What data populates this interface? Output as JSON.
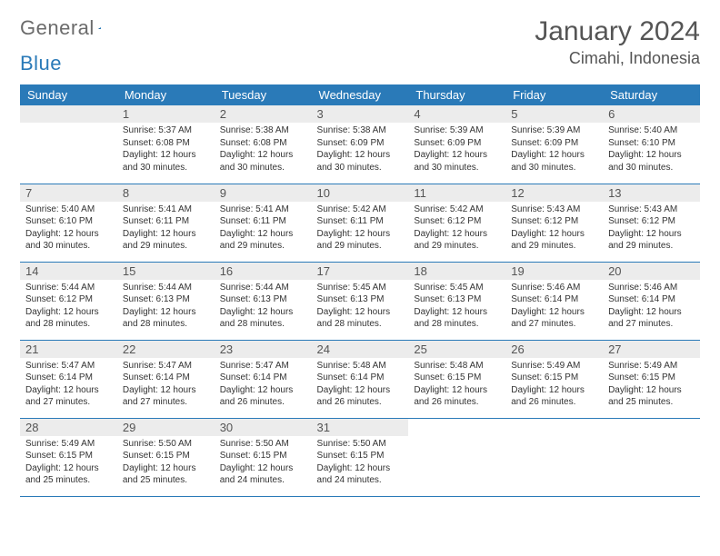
{
  "logo": {
    "text1": "General",
    "text2": "Blue",
    "triangle_color": "#2a7ab8"
  },
  "title": "January 2024",
  "location": "Cimahi, Indonesia",
  "colors": {
    "header_bg": "#2a7ab8",
    "header_fg": "#ffffff",
    "row_border": "#2a7ab8",
    "shade_bg": "#ececec",
    "page_bg": "#ffffff",
    "text": "#333333",
    "title_color": "#555555"
  },
  "weekdays": [
    "Sunday",
    "Monday",
    "Tuesday",
    "Wednesday",
    "Thursday",
    "Friday",
    "Saturday"
  ],
  "start_offset": 1,
  "days": [
    {
      "n": 1,
      "sr": "5:37 AM",
      "ss": "6:08 PM",
      "dl": "12 hours and 30 minutes."
    },
    {
      "n": 2,
      "sr": "5:38 AM",
      "ss": "6:08 PM",
      "dl": "12 hours and 30 minutes."
    },
    {
      "n": 3,
      "sr": "5:38 AM",
      "ss": "6:09 PM",
      "dl": "12 hours and 30 minutes."
    },
    {
      "n": 4,
      "sr": "5:39 AM",
      "ss": "6:09 PM",
      "dl": "12 hours and 30 minutes."
    },
    {
      "n": 5,
      "sr": "5:39 AM",
      "ss": "6:09 PM",
      "dl": "12 hours and 30 minutes."
    },
    {
      "n": 6,
      "sr": "5:40 AM",
      "ss": "6:10 PM",
      "dl": "12 hours and 30 minutes."
    },
    {
      "n": 7,
      "sr": "5:40 AM",
      "ss": "6:10 PM",
      "dl": "12 hours and 30 minutes."
    },
    {
      "n": 8,
      "sr": "5:41 AM",
      "ss": "6:11 PM",
      "dl": "12 hours and 29 minutes."
    },
    {
      "n": 9,
      "sr": "5:41 AM",
      "ss": "6:11 PM",
      "dl": "12 hours and 29 minutes."
    },
    {
      "n": 10,
      "sr": "5:42 AM",
      "ss": "6:11 PM",
      "dl": "12 hours and 29 minutes."
    },
    {
      "n": 11,
      "sr": "5:42 AM",
      "ss": "6:12 PM",
      "dl": "12 hours and 29 minutes."
    },
    {
      "n": 12,
      "sr": "5:43 AM",
      "ss": "6:12 PM",
      "dl": "12 hours and 29 minutes."
    },
    {
      "n": 13,
      "sr": "5:43 AM",
      "ss": "6:12 PM",
      "dl": "12 hours and 29 minutes."
    },
    {
      "n": 14,
      "sr": "5:44 AM",
      "ss": "6:12 PM",
      "dl": "12 hours and 28 minutes."
    },
    {
      "n": 15,
      "sr": "5:44 AM",
      "ss": "6:13 PM",
      "dl": "12 hours and 28 minutes."
    },
    {
      "n": 16,
      "sr": "5:44 AM",
      "ss": "6:13 PM",
      "dl": "12 hours and 28 minutes."
    },
    {
      "n": 17,
      "sr": "5:45 AM",
      "ss": "6:13 PM",
      "dl": "12 hours and 28 minutes."
    },
    {
      "n": 18,
      "sr": "5:45 AM",
      "ss": "6:13 PM",
      "dl": "12 hours and 28 minutes."
    },
    {
      "n": 19,
      "sr": "5:46 AM",
      "ss": "6:14 PM",
      "dl": "12 hours and 27 minutes."
    },
    {
      "n": 20,
      "sr": "5:46 AM",
      "ss": "6:14 PM",
      "dl": "12 hours and 27 minutes."
    },
    {
      "n": 21,
      "sr": "5:47 AM",
      "ss": "6:14 PM",
      "dl": "12 hours and 27 minutes."
    },
    {
      "n": 22,
      "sr": "5:47 AM",
      "ss": "6:14 PM",
      "dl": "12 hours and 27 minutes."
    },
    {
      "n": 23,
      "sr": "5:47 AM",
      "ss": "6:14 PM",
      "dl": "12 hours and 26 minutes."
    },
    {
      "n": 24,
      "sr": "5:48 AM",
      "ss": "6:14 PM",
      "dl": "12 hours and 26 minutes."
    },
    {
      "n": 25,
      "sr": "5:48 AM",
      "ss": "6:15 PM",
      "dl": "12 hours and 26 minutes."
    },
    {
      "n": 26,
      "sr": "5:49 AM",
      "ss": "6:15 PM",
      "dl": "12 hours and 26 minutes."
    },
    {
      "n": 27,
      "sr": "5:49 AM",
      "ss": "6:15 PM",
      "dl": "12 hours and 25 minutes."
    },
    {
      "n": 28,
      "sr": "5:49 AM",
      "ss": "6:15 PM",
      "dl": "12 hours and 25 minutes."
    },
    {
      "n": 29,
      "sr": "5:50 AM",
      "ss": "6:15 PM",
      "dl": "12 hours and 25 minutes."
    },
    {
      "n": 30,
      "sr": "5:50 AM",
      "ss": "6:15 PM",
      "dl": "12 hours and 24 minutes."
    },
    {
      "n": 31,
      "sr": "5:50 AM",
      "ss": "6:15 PM",
      "dl": "12 hours and 24 minutes."
    }
  ],
  "labels": {
    "sunrise": "Sunrise:",
    "sunset": "Sunset:",
    "daylight": "Daylight:"
  }
}
